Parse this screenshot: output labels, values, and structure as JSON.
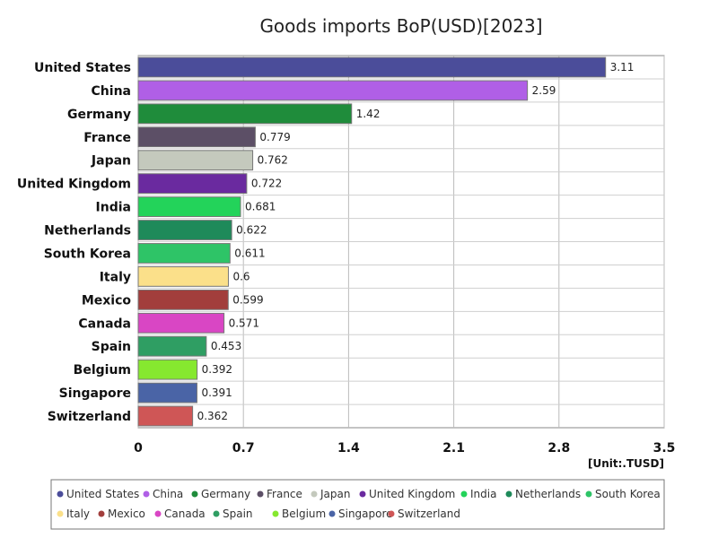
{
  "chart_data": {
    "type": "bar",
    "orientation": "horizontal",
    "title": "Goods imports BoP(USD)[2023]",
    "unit": "[Unit:.TUSD]",
    "xlim": [
      0,
      3.5
    ],
    "xticks": [
      0,
      0.7,
      1.4,
      2.1,
      2.8,
      3.5
    ],
    "xtick_labels": [
      "0",
      "0.7",
      "1.4",
      "2.1",
      "2.8",
      "3.5"
    ],
    "grid": true,
    "legend_position": "bottom",
    "categories": [
      "United States",
      "China",
      "Germany",
      "France",
      "Japan",
      "United Kingdom",
      "India",
      "Netherlands",
      "South Korea",
      "Italy",
      "Mexico",
      "Canada",
      "Spain",
      "Belgium",
      "Singapore",
      "Switzerland"
    ],
    "values": [
      3.11,
      2.59,
      1.42,
      0.779,
      0.762,
      0.722,
      0.681,
      0.622,
      0.611,
      0.6,
      0.599,
      0.571,
      0.453,
      0.392,
      0.391,
      0.362
    ],
    "value_labels": [
      "3.11",
      "2.59",
      "1.42",
      "0.779",
      "0.762",
      "0.722",
      "0.681",
      "0.622",
      "0.611",
      "0.6",
      "0.599",
      "0.571",
      "0.453",
      "0.392",
      "0.391",
      "0.362"
    ],
    "colors": [
      "#4b4d9a",
      "#b05fe6",
      "#1f8c3b",
      "#5c4f66",
      "#c4c9bd",
      "#6a2a9f",
      "#23d35a",
      "#1e8a5a",
      "#2ec467",
      "#fbe08a",
      "#a23e3c",
      "#d946c4",
      "#2f9e63",
      "#86e82f",
      "#4a64a6",
      "#cf5656"
    ]
  }
}
